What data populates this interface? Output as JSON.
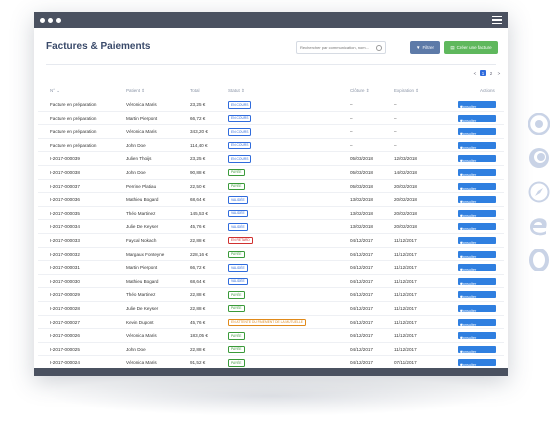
{
  "page": {
    "title": "Factures & Paiements"
  },
  "toolbar": {
    "search_placeholder": "Rechercher par communication, nom...",
    "filter_label": "Filtrer",
    "create_label": "Créer une facture"
  },
  "pagination": {
    "pages": [
      "1",
      "2"
    ],
    "current": "1",
    "prev": "<",
    "next": ">"
  },
  "columns": {
    "num": "N° ⌄",
    "patient": "Patient ⇕",
    "total": "Total",
    "statut": "Statut ⇕",
    "cloture": "Clôture ⇕",
    "expiration": "Expiration ⇕",
    "actions": "Actions"
  },
  "row_action": "Consulter",
  "rows": [
    {
      "num": "Facture en préparation",
      "patient": "Véronica Maris",
      "total": "23,25 €",
      "status": "En cours",
      "color": "blue",
      "cloture": "–",
      "expiration": "–"
    },
    {
      "num": "Facture en préparation",
      "patient": "Martin Pierpont",
      "total": "66,72 €",
      "status": "En cours",
      "color": "blue",
      "cloture": "–",
      "expiration": "–"
    },
    {
      "num": "Facture en préparation",
      "patient": "Véronica Maris",
      "total": "343,20 €",
      "status": "En cours",
      "color": "blue",
      "cloture": "–",
      "expiration": "–"
    },
    {
      "num": "Facture en préparation",
      "patient": "John Doe",
      "total": "114,40 €",
      "status": "En cours",
      "color": "blue",
      "cloture": "–",
      "expiration": "–"
    },
    {
      "num": "I-2017-000039",
      "patient": "Julien Thoijs",
      "total": "23,25 €",
      "status": "En cours",
      "color": "blue",
      "cloture": "05/03/2018",
      "expiration": "12/03/2018"
    },
    {
      "num": "I-2017-000038",
      "patient": "John Doe",
      "total": "90,88 €",
      "status": "Payée",
      "color": "green",
      "cloture": "05/03/2018",
      "expiration": "14/02/2018"
    },
    {
      "num": "I-2017-000037",
      "patient": "Perrine Platiau",
      "total": "22,50 €",
      "status": "Payée",
      "color": "green",
      "cloture": "05/03/2018",
      "expiration": "20/02/2018"
    },
    {
      "num": "I-2017-000036",
      "patient": "Mathieu Bogard",
      "total": "68,64 €",
      "status": "Validée",
      "color": "blue",
      "cloture": "13/02/2018",
      "expiration": "20/02/2018"
    },
    {
      "num": "I-2017-000035",
      "patient": "Théo Martinez",
      "total": "145,53 €",
      "status": "Validée",
      "color": "blue",
      "cloture": "13/02/2018",
      "expiration": "20/02/2018"
    },
    {
      "num": "I-2017-000034",
      "patient": "Julie De Keyser",
      "total": "45,76 €",
      "status": "Validée",
      "color": "blue",
      "cloture": "13/02/2018",
      "expiration": "20/02/2018"
    },
    {
      "num": "I-2017-000033",
      "patient": "Faycal Nokach",
      "total": "22,88 €",
      "status": "En retard",
      "color": "red",
      "cloture": "04/12/2017",
      "expiration": "11/12/2017"
    },
    {
      "num": "I-2017-000032",
      "patient": "Margaux Fonteyne",
      "total": "228,16 €",
      "status": "Payée",
      "color": "green",
      "cloture": "04/12/2017",
      "expiration": "11/12/2017"
    },
    {
      "num": "I-2017-000031",
      "patient": "Martin Pierpont",
      "total": "66,72 €",
      "status": "Validée",
      "color": "blue",
      "cloture": "04/12/2017",
      "expiration": "11/12/2017"
    },
    {
      "num": "I-2017-000030",
      "patient": "Mathieu Bogard",
      "total": "68,64 €",
      "status": "Validée",
      "color": "blue",
      "cloture": "04/12/2017",
      "expiration": "11/12/2017"
    },
    {
      "num": "I-2017-000029",
      "patient": "Théo Martinez",
      "total": "22,88 €",
      "status": "Payée",
      "color": "green",
      "cloture": "04/12/2017",
      "expiration": "11/12/2017"
    },
    {
      "num": "I-2017-000028",
      "patient": "Julie De Keyser",
      "total": "22,88 €",
      "status": "Payée",
      "color": "green",
      "cloture": "04/12/2017",
      "expiration": "11/12/2017"
    },
    {
      "num": "I-2017-000027",
      "patient": "Kevin Dupont",
      "total": "45,76 €",
      "status": "En attente du paiement de la mutuelle",
      "color": "orange",
      "cloture": "04/12/2017",
      "expiration": "11/12/2017"
    },
    {
      "num": "I-2017-000026",
      "patient": "Véronica Maris",
      "total": "183,05 €",
      "status": "Payée",
      "color": "green",
      "cloture": "04/12/2017",
      "expiration": "11/12/2017"
    },
    {
      "num": "I-2017-000025",
      "patient": "John Doe",
      "total": "22,88 €",
      "status": "Payée",
      "color": "green",
      "cloture": "04/12/2017",
      "expiration": "11/12/2017"
    },
    {
      "num": "I-2017-000024",
      "patient": "Véronica Maris",
      "total": "91,52 €",
      "status": "Payée",
      "color": "green",
      "cloture": "04/12/2017",
      "expiration": "07/11/2017"
    },
    {
      "num": "I-2017-000023",
      "patient": "Théo Martinez",
      "total": "22,88 €",
      "status": "En retard",
      "color": "red",
      "cloture": "12/11/2017",
      "expiration": "20/11/2017"
    }
  ],
  "browsers": [
    "chrome-icon",
    "firefox-icon",
    "safari-icon",
    "edge-icon",
    "opera-icon"
  ]
}
